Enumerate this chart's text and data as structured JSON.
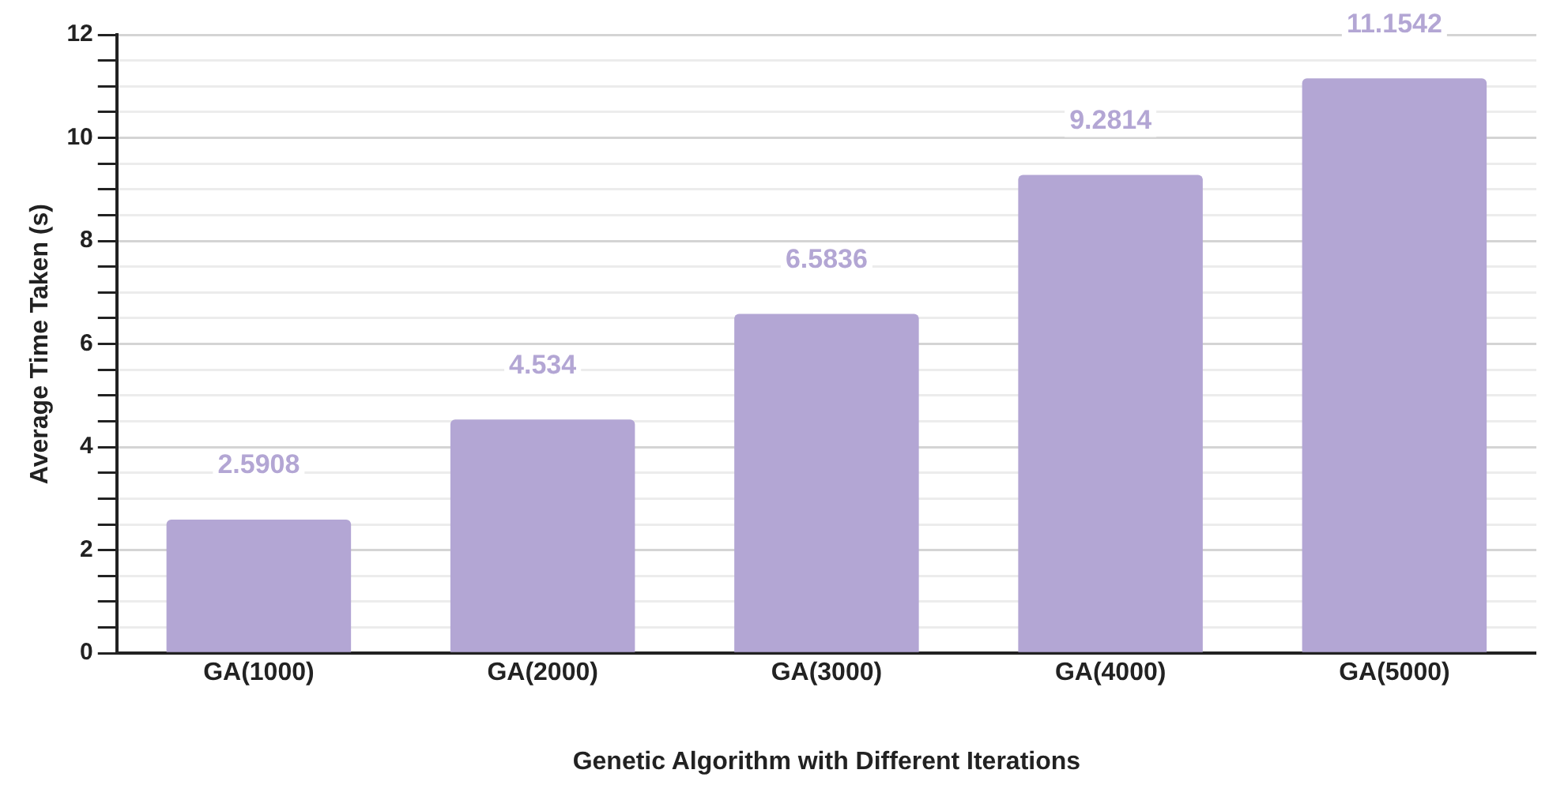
{
  "chart_data": {
    "type": "bar",
    "xlabel": "Genetic Algorithm with Different Iterations",
    "ylabel": "Average Time Taken (s)",
    "categories": [
      "GA(1000)",
      "GA(2000)",
      "GA(3000)",
      "GA(4000)",
      "GA(5000)"
    ],
    "values": [
      2.5908,
      4.534,
      6.5836,
      9.2814,
      11.1542
    ],
    "color": "#b3a6d4",
    "ylim": [
      0,
      12
    ],
    "yticks": [
      0,
      {
        "value": 0.5,
        "label": null
      },
      {
        "value": 1,
        "label": null
      },
      {
        "value": 1.5,
        "label": null
      },
      2,
      {
        "value": 2.5,
        "label": null
      },
      {
        "value": 3,
        "label": null
      },
      {
        "value": 3.5,
        "label": null
      },
      4,
      {
        "value": 4.5,
        "label": null
      },
      {
        "value": 5,
        "label": null
      },
      {
        "value": 5.5,
        "label": null
      },
      6,
      {
        "value": 6.5,
        "label": null
      },
      {
        "value": 7,
        "label": null
      },
      {
        "value": 7.5,
        "label": null
      },
      8,
      {
        "value": 8.5,
        "label": null
      },
      {
        "value": 9,
        "label": null
      },
      {
        "value": 9.5,
        "label": null
      },
      10,
      {
        "value": 10.5,
        "label": null
      },
      {
        "value": 11,
        "label": null
      },
      {
        "value": 11.5,
        "label": null
      },
      12
    ],
    "grid": "y",
    "data_labels": true,
    "legend": false
  }
}
